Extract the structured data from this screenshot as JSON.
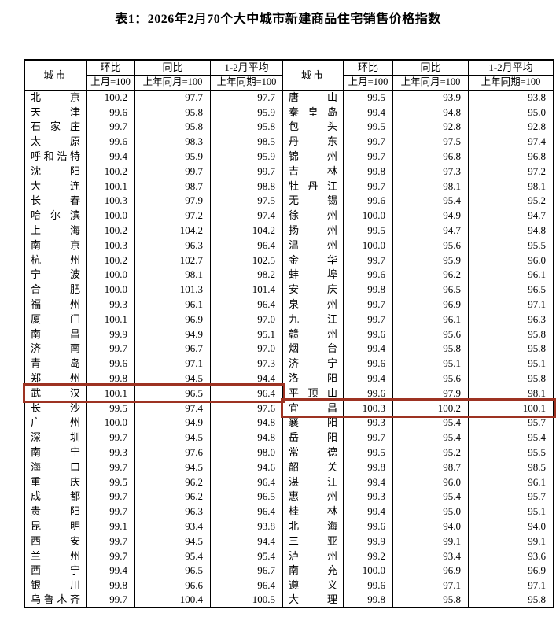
{
  "title": "表1：2026年2月70个大中城市新建商品住宅销售价格指数",
  "columns": {
    "city": "城市",
    "groups": [
      {
        "label": "环比",
        "base": "上月=100"
      },
      {
        "label": "同比",
        "base": "上年同月=100"
      },
      {
        "label": "1-2月平均",
        "base": "上年同期=100"
      }
    ]
  },
  "highlight": {
    "color": "#9d3222",
    "left_city": "武汉",
    "right_city": "宜昌"
  },
  "left_rows": [
    {
      "city": "北京",
      "mom": "100.2",
      "yoy": "97.7",
      "avg": "97.7"
    },
    {
      "city": "天津",
      "mom": "99.6",
      "yoy": "95.8",
      "avg": "95.9"
    },
    {
      "city": "石家庄",
      "mom": "99.7",
      "yoy": "95.8",
      "avg": "95.8"
    },
    {
      "city": "太原",
      "mom": "99.6",
      "yoy": "98.3",
      "avg": "98.5"
    },
    {
      "city": "呼和浩特",
      "mom": "99.4",
      "yoy": "95.9",
      "avg": "95.9"
    },
    {
      "city": "沈阳",
      "mom": "100.2",
      "yoy": "99.7",
      "avg": "99.7"
    },
    {
      "city": "大连",
      "mom": "100.1",
      "yoy": "98.7",
      "avg": "98.8"
    },
    {
      "city": "长春",
      "mom": "100.3",
      "yoy": "97.9",
      "avg": "97.5"
    },
    {
      "city": "哈尔滨",
      "mom": "100.0",
      "yoy": "97.2",
      "avg": "97.4"
    },
    {
      "city": "上海",
      "mom": "100.2",
      "yoy": "104.2",
      "avg": "104.2"
    },
    {
      "city": "南京",
      "mom": "100.3",
      "yoy": "96.3",
      "avg": "96.4"
    },
    {
      "city": "杭州",
      "mom": "100.2",
      "yoy": "102.7",
      "avg": "102.5"
    },
    {
      "city": "宁波",
      "mom": "100.0",
      "yoy": "98.1",
      "avg": "98.2"
    },
    {
      "city": "合肥",
      "mom": "100.0",
      "yoy": "101.3",
      "avg": "101.4"
    },
    {
      "city": "福州",
      "mom": "99.3",
      "yoy": "96.1",
      "avg": "96.4"
    },
    {
      "city": "厦门",
      "mom": "100.1",
      "yoy": "96.9",
      "avg": "97.0"
    },
    {
      "city": "南昌",
      "mom": "99.9",
      "yoy": "94.9",
      "avg": "95.1"
    },
    {
      "city": "济南",
      "mom": "99.7",
      "yoy": "96.7",
      "avg": "97.0"
    },
    {
      "city": "青岛",
      "mom": "99.6",
      "yoy": "97.1",
      "avg": "97.3"
    },
    {
      "city": "郑州",
      "mom": "99.8",
      "yoy": "94.5",
      "avg": "94.4"
    },
    {
      "city": "武汉",
      "mom": "100.1",
      "yoy": "96.5",
      "avg": "96.4"
    },
    {
      "city": "长沙",
      "mom": "99.5",
      "yoy": "97.4",
      "avg": "97.6"
    },
    {
      "city": "广州",
      "mom": "100.0",
      "yoy": "94.9",
      "avg": "94.8"
    },
    {
      "city": "深圳",
      "mom": "99.7",
      "yoy": "94.5",
      "avg": "94.8"
    },
    {
      "city": "南宁",
      "mom": "99.3",
      "yoy": "97.6",
      "avg": "98.0"
    },
    {
      "city": "海口",
      "mom": "99.7",
      "yoy": "94.5",
      "avg": "94.6"
    },
    {
      "city": "重庆",
      "mom": "99.5",
      "yoy": "96.2",
      "avg": "96.4"
    },
    {
      "city": "成都",
      "mom": "99.7",
      "yoy": "96.2",
      "avg": "96.5"
    },
    {
      "city": "贵阳",
      "mom": "99.7",
      "yoy": "96.3",
      "avg": "96.4"
    },
    {
      "city": "昆明",
      "mom": "99.1",
      "yoy": "93.4",
      "avg": "93.8"
    },
    {
      "city": "西安",
      "mom": "99.7",
      "yoy": "94.5",
      "avg": "94.4"
    },
    {
      "city": "兰州",
      "mom": "99.7",
      "yoy": "95.4",
      "avg": "95.4"
    },
    {
      "city": "西宁",
      "mom": "99.4",
      "yoy": "96.5",
      "avg": "96.7"
    },
    {
      "city": "银川",
      "mom": "99.8",
      "yoy": "96.6",
      "avg": "96.4"
    },
    {
      "city": "乌鲁木齐",
      "mom": "99.7",
      "yoy": "100.4",
      "avg": "100.5"
    }
  ],
  "right_rows": [
    {
      "city": "唐山",
      "mom": "99.5",
      "yoy": "93.9",
      "avg": "93.8"
    },
    {
      "city": "秦皇岛",
      "mom": "99.4",
      "yoy": "94.8",
      "avg": "95.0"
    },
    {
      "city": "包头",
      "mom": "99.5",
      "yoy": "92.8",
      "avg": "92.8"
    },
    {
      "city": "丹东",
      "mom": "99.7",
      "yoy": "97.5",
      "avg": "97.4"
    },
    {
      "city": "锦州",
      "mom": "99.7",
      "yoy": "96.8",
      "avg": "96.8"
    },
    {
      "city": "吉林",
      "mom": "99.8",
      "yoy": "97.3",
      "avg": "97.2"
    },
    {
      "city": "牡丹江",
      "mom": "99.7",
      "yoy": "98.1",
      "avg": "98.1"
    },
    {
      "city": "无锡",
      "mom": "99.6",
      "yoy": "95.4",
      "avg": "95.2"
    },
    {
      "city": "徐州",
      "mom": "100.0",
      "yoy": "94.9",
      "avg": "94.7"
    },
    {
      "city": "扬州",
      "mom": "99.5",
      "yoy": "94.7",
      "avg": "94.8"
    },
    {
      "city": "温州",
      "mom": "100.0",
      "yoy": "95.6",
      "avg": "95.5"
    },
    {
      "city": "金华",
      "mom": "99.7",
      "yoy": "95.9",
      "avg": "96.0"
    },
    {
      "city": "蚌埠",
      "mom": "99.6",
      "yoy": "96.2",
      "avg": "96.1"
    },
    {
      "city": "安庆",
      "mom": "99.8",
      "yoy": "96.5",
      "avg": "96.5"
    },
    {
      "city": "泉州",
      "mom": "99.7",
      "yoy": "96.9",
      "avg": "97.1"
    },
    {
      "city": "九江",
      "mom": "99.7",
      "yoy": "96.1",
      "avg": "96.3"
    },
    {
      "city": "赣州",
      "mom": "99.6",
      "yoy": "95.6",
      "avg": "95.8"
    },
    {
      "city": "烟台",
      "mom": "99.4",
      "yoy": "95.8",
      "avg": "95.8"
    },
    {
      "city": "济宁",
      "mom": "99.6",
      "yoy": "95.1",
      "avg": "95.1"
    },
    {
      "city": "洛阳",
      "mom": "99.4",
      "yoy": "95.6",
      "avg": "95.8"
    },
    {
      "city": "平顶山",
      "mom": "99.6",
      "yoy": "97.9",
      "avg": "98.1"
    },
    {
      "city": "宜昌",
      "mom": "100.3",
      "yoy": "100.2",
      "avg": "100.1"
    },
    {
      "city": "襄阳",
      "mom": "99.3",
      "yoy": "95.4",
      "avg": "95.7"
    },
    {
      "city": "岳阳",
      "mom": "99.7",
      "yoy": "95.4",
      "avg": "95.4"
    },
    {
      "city": "常德",
      "mom": "99.5",
      "yoy": "95.2",
      "avg": "95.5"
    },
    {
      "city": "韶关",
      "mom": "99.8",
      "yoy": "98.7",
      "avg": "98.5"
    },
    {
      "city": "湛江",
      "mom": "99.4",
      "yoy": "96.0",
      "avg": "96.1"
    },
    {
      "city": "惠州",
      "mom": "99.3",
      "yoy": "95.4",
      "avg": "95.7"
    },
    {
      "city": "桂林",
      "mom": "99.4",
      "yoy": "95.0",
      "avg": "95.1"
    },
    {
      "city": "北海",
      "mom": "99.6",
      "yoy": "94.0",
      "avg": "94.0"
    },
    {
      "city": "三亚",
      "mom": "99.9",
      "yoy": "99.1",
      "avg": "99.1"
    },
    {
      "city": "泸州",
      "mom": "99.2",
      "yoy": "93.4",
      "avg": "93.6"
    },
    {
      "city": "南充",
      "mom": "100.0",
      "yoy": "96.9",
      "avg": "96.9"
    },
    {
      "city": "遵义",
      "mom": "99.6",
      "yoy": "97.1",
      "avg": "97.1"
    },
    {
      "city": "大理",
      "mom": "99.8",
      "yoy": "95.8",
      "avg": "95.8"
    }
  ]
}
